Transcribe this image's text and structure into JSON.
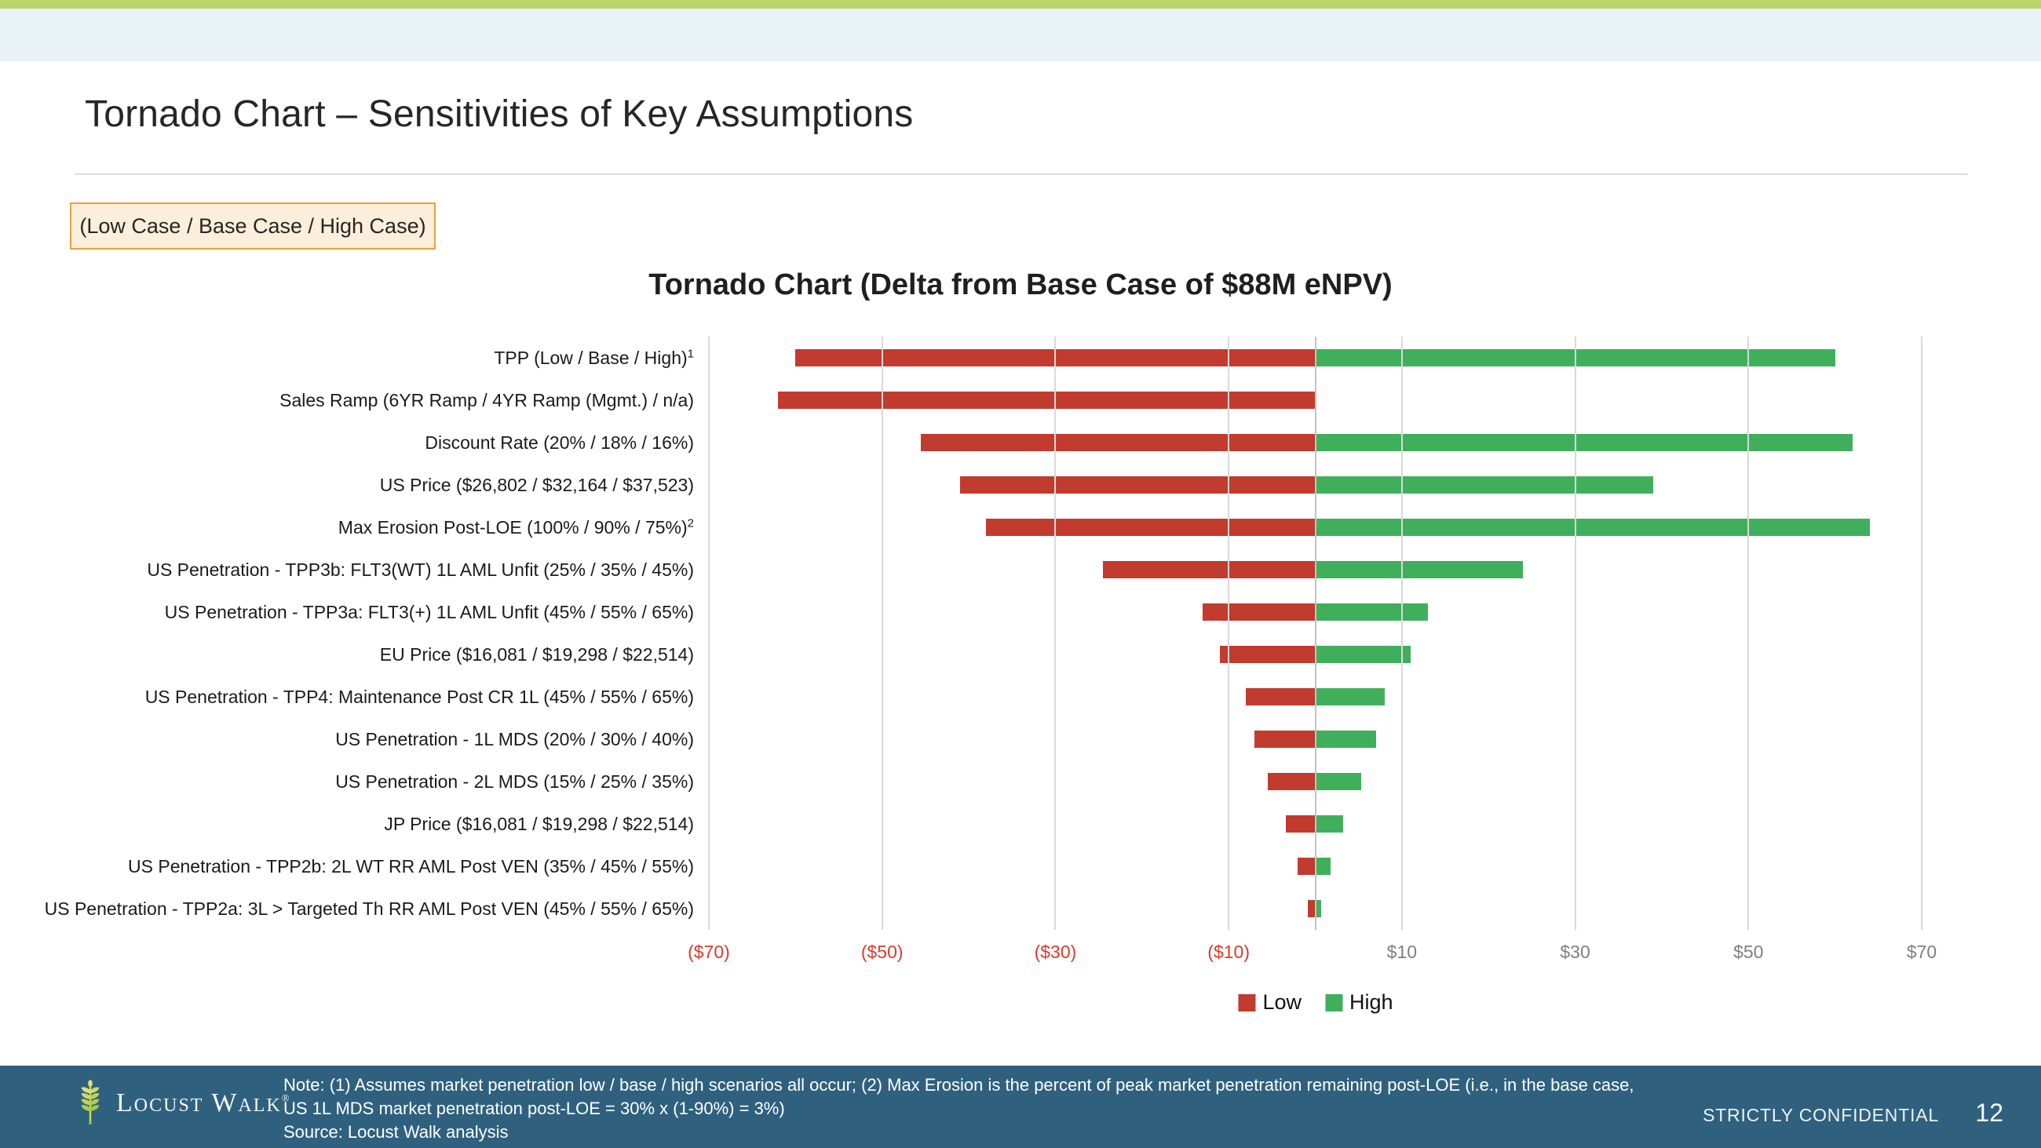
{
  "theme": {
    "top_strip_color": "#BCD56A",
    "band_color": "#E9F2F6",
    "footer_color": "#2F617F",
    "low_color": "#C13B2E",
    "high_color": "#3FAF5C",
    "negative_tick_color": "#E0382C",
    "positive_tick_color": "#7F7F7F"
  },
  "header": {
    "title": "Tornado Chart – Sensitivities of Key Assumptions"
  },
  "case_box": {
    "label": "(Low Case / Base Case / High Case)"
  },
  "chart_data": {
    "type": "bar",
    "orientation": "horizontal-tornado",
    "title": "Tornado Chart (Delta from Base Case of $88M eNPV)",
    "units": "$M delta from base case eNPV",
    "axis": {
      "min": -70,
      "max": 70,
      "tick_values": [
        -70,
        -50,
        -30,
        -10,
        10,
        30,
        50,
        70
      ],
      "tick_labels": [
        "($70)",
        "($50)",
        "($30)",
        "($10)",
        "$10",
        "$30",
        "$50",
        "$70"
      ],
      "grid": true
    },
    "categories": [
      {
        "label": "TPP (Low / Base / High)",
        "sup": "1"
      },
      {
        "label": "Sales Ramp (6YR Ramp / 4YR Ramp (Mgmt.) / n/a)",
        "sup": ""
      },
      {
        "label": "Discount Rate (20% / 18% / 16%)",
        "sup": ""
      },
      {
        "label": "US Price ($26,802 / $32,164 / $37,523)",
        "sup": ""
      },
      {
        "label": "Max Erosion Post-LOE (100% / 90% / 75%)",
        "sup": "2"
      },
      {
        "label": "US Penetration - TPP3b: FLT3(WT)  1L AML Unfit (25% / 35% / 45%)",
        "sup": ""
      },
      {
        "label": "US Penetration - TPP3a: FLT3(+) 1L AML Unfit  (45% / 55% / 65%)",
        "sup": ""
      },
      {
        "label": "EU Price ($16,081 / $19,298 / $22,514)",
        "sup": ""
      },
      {
        "label": "US Penetration - TPP4: Maintenance Post CR 1L (45% / 55% / 65%)",
        "sup": ""
      },
      {
        "label": "US Penetration - 1L MDS (20% / 30% / 40%)",
        "sup": ""
      },
      {
        "label": "US Penetration - 2L MDS (15% / 25% / 35%)",
        "sup": ""
      },
      {
        "label": "JP Price ($16,081 / $19,298 / $22,514)",
        "sup": ""
      },
      {
        "label": "US Penetration - TPP2b: 2L WT RR AML Post VEN (35% / 45% / 55%)",
        "sup": ""
      },
      {
        "label": "US Penetration - TPP2a: 3L > Targeted Th RR AML Post VEN (45% / 55% / 65%)",
        "sup": ""
      }
    ],
    "series": [
      {
        "name": "Low",
        "color": "#C13B2E",
        "values": [
          -60,
          -62,
          -45.5,
          -41,
          -38,
          -24.5,
          -13,
          -11,
          -8,
          -7,
          -5.5,
          -3.4,
          -2,
          -0.9
        ]
      },
      {
        "name": "High",
        "color": "#3FAF5C",
        "values": [
          60,
          null,
          62,
          39,
          64,
          24,
          13,
          11,
          8,
          7,
          5.3,
          3.2,
          1.8,
          0.7
        ]
      }
    ],
    "legend_position": "bottom-center"
  },
  "footer": {
    "logo_text": "Locust Walk",
    "logo_reg": "®",
    "note_lines": [
      "Note: (1) Assumes market penetration low / base / high scenarios all occur; (2) Max Erosion is the percent of peak market penetration remaining post-LOE (i.e., in the base case,",
      "US 1L MDS market penetration post-LOE = 30% x (1-90%) = 3%)",
      "Source: Locust Walk analysis"
    ],
    "confidential": "STRICTLY CONFIDENTIAL",
    "page": "12"
  }
}
